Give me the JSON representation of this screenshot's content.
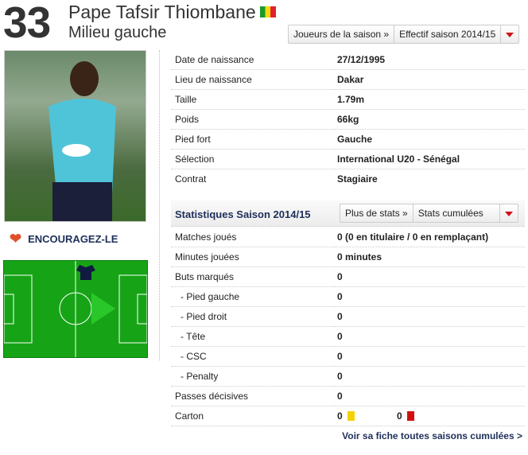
{
  "player": {
    "number": "33",
    "name": "Pape Tafsir Thiombane",
    "position": "Milieu gauche",
    "flag": "senegal-flag"
  },
  "nav": {
    "season_players": "Joueurs de la saison »",
    "squad": "Effectif saison 2014/15"
  },
  "encourage": "ENCOURAGEZ-LE",
  "info": [
    {
      "label": "Date de naissance",
      "value": "27/12/1995"
    },
    {
      "label": "Lieu de naissance",
      "value": "Dakar"
    },
    {
      "label": "Taille",
      "value": "1.79m"
    },
    {
      "label": "Poids",
      "value": "66kg"
    },
    {
      "label": "Pied fort",
      "value": "Gauche"
    },
    {
      "label": "Sélection",
      "value": "International U20 - Sénégal"
    },
    {
      "label": "Contrat",
      "value": "Stagiaire"
    }
  ],
  "stats": {
    "title": "Statistiques Saison 2014/15",
    "more": "Plus de stats »",
    "select": "Stats cumulées",
    "rows": [
      {
        "label": "Matches joués",
        "value": "0 (0 en titulaire / 0 en remplaçant)"
      },
      {
        "label": "Minutes jouées",
        "value": "0 minutes"
      },
      {
        "label": "Buts marqués",
        "value": "0"
      },
      {
        "label": "- Pied gauche",
        "value": "0"
      },
      {
        "label": "- Pied droit",
        "value": "0"
      },
      {
        "label": "- Tête",
        "value": "0"
      },
      {
        "label": "- CSC",
        "value": "0"
      },
      {
        "label": "- Penalty",
        "value": "0"
      },
      {
        "label": "Passes décisives",
        "value": "0"
      }
    ],
    "cards": {
      "label": "Carton",
      "yellow": "0",
      "red": "0",
      "yellow_color": "#f2d300",
      "red_color": "#d01010"
    }
  },
  "footer_link": "Voir sa fiche toutes saisons cumulées >"
}
